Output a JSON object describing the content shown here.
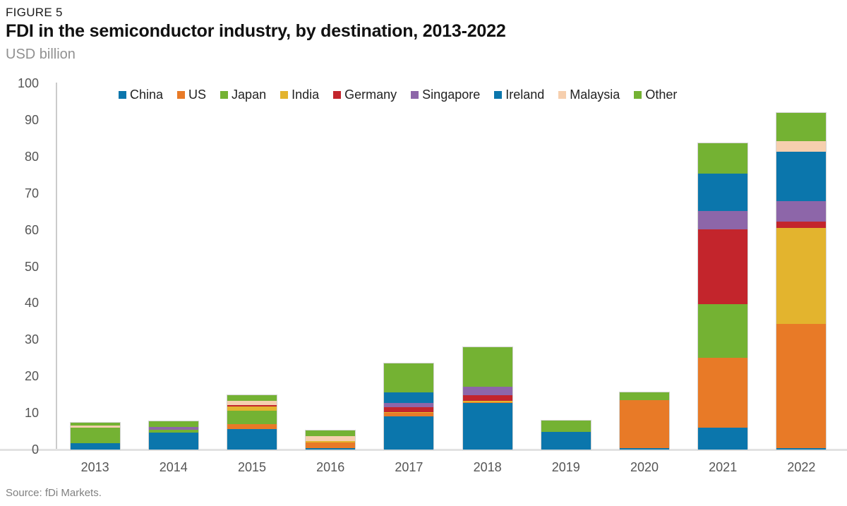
{
  "figure": {
    "label": "FIGURE 5",
    "title": "FDI in the semiconductor industry, by destination, 2013-2022",
    "subtitle": "USD billion",
    "source": "Source: fDi Markets."
  },
  "colors": {
    "china_ireland_blue": "#0b76ac",
    "us_orange": "#e87a27",
    "japan_other_green": "#74b233",
    "india_gold": "#e3b42e",
    "germany_red": "#c3252c",
    "singapore_purple": "#8d66a9",
    "malaysia_peach": "#f6cfae",
    "axis_text": "#555555",
    "legend_text": "#222222",
    "axis_line": "#cbcbcb",
    "baseline": "#e2e2e2"
  },
  "chart_data": {
    "type": "bar",
    "stacked": true,
    "title": "FDI in the semiconductor industry, by destination, 2013-2022",
    "ylabel": "USD billion",
    "xlabel": "",
    "grid": false,
    "legend_position": "top",
    "ylim": [
      0,
      100
    ],
    "yticks": [
      0,
      10,
      20,
      30,
      40,
      50,
      60,
      70,
      80,
      90,
      100
    ],
    "categories": [
      "2013",
      "2014",
      "2015",
      "2016",
      "2017",
      "2018",
      "2019",
      "2020",
      "2021",
      "2022"
    ],
    "series": [
      {
        "name": "China",
        "color": "#0b76ac",
        "values": [
          1.7,
          4.6,
          5.6,
          0.4,
          9.1,
          12.8,
          2.2,
          0.4,
          5.9,
          0.3
        ]
      },
      {
        "name": "US",
        "color": "#e87a27",
        "values": [
          0,
          0,
          1.3,
          1.5,
          0.9,
          0.2,
          0,
          13.0,
          19.2,
          34.0
        ]
      },
      {
        "name": "Japan",
        "color": "#74b233",
        "values": [
          4.3,
          0.8,
          3.7,
          0,
          0,
          0,
          0,
          0,
          14.5,
          0
        ]
      },
      {
        "name": "India",
        "color": "#e3b42e",
        "values": [
          0,
          0,
          1.2,
          0.5,
          0.3,
          0.3,
          0,
          0,
          0,
          26.2
        ]
      },
      {
        "name": "Germany",
        "color": "#c3252c",
        "values": [
          0,
          0,
          0.4,
          0,
          1.3,
          1.5,
          0,
          0,
          20.5,
          1.8
        ]
      },
      {
        "name": "Singapore",
        "color": "#8d66a9",
        "values": [
          0,
          0.7,
          0,
          0,
          1.2,
          2.3,
          0,
          0,
          5.0,
          5.6
        ]
      },
      {
        "name": "Ireland",
        "color": "#0b76ac",
        "values": [
          0,
          0,
          0,
          0,
          2.9,
          0,
          2.7,
          0,
          10.3,
          13.5
        ]
      },
      {
        "name": "Malaysia",
        "color": "#f6cfae",
        "values": [
          0.5,
          0,
          1.1,
          1.3,
          0,
          0,
          0,
          0,
          0,
          2.8
        ]
      },
      {
        "name": "Other",
        "color": "#74b233",
        "values": [
          0.9,
          1.7,
          1.6,
          1.5,
          7.9,
          10.9,
          3.0,
          2.2,
          8.2,
          7.7
        ]
      }
    ]
  }
}
